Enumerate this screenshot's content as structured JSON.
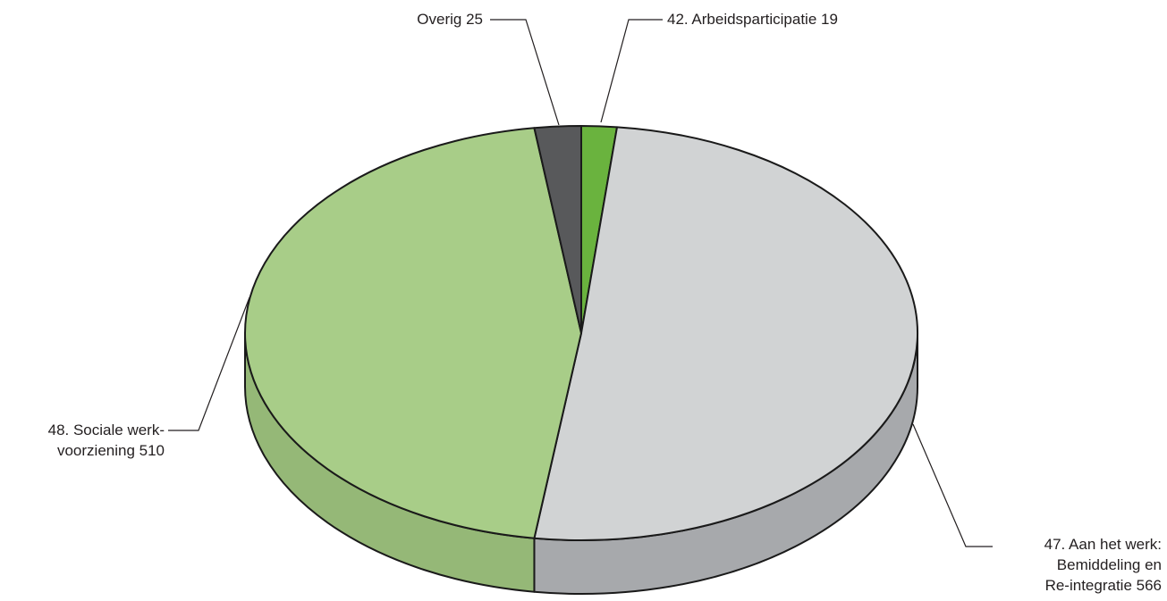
{
  "chart_data": {
    "type": "pie",
    "style": "3d",
    "series": [
      {
        "name": "42. Arbeidsparticipatie",
        "value": 19,
        "color": "#6ab33e",
        "side_color": "#5a9a33"
      },
      {
        "name": "47. Aan het werk: Bemiddeling en Re-integratie",
        "value": 566,
        "color": "#d1d3d4",
        "side_color": "#a7a9ac"
      },
      {
        "name": "48. Sociale werkvoorziening",
        "value": 510,
        "color": "#a8cd88",
        "side_color": "#95b877"
      },
      {
        "name": "Overig",
        "value": 25,
        "color": "#58595b",
        "side_color": "#3f4042"
      }
    ],
    "labels": [
      {
        "lines": [
          "42. Arbeidsparticipatie 19"
        ]
      },
      {
        "lines": [
          "47. Aan het werk:",
          "Bemiddeling en",
          "Re-integratie 566"
        ]
      },
      {
        "lines": [
          "48. Sociale werk-",
          "voorziening 510"
        ]
      },
      {
        "lines": [
          "Overig 25"
        ]
      }
    ]
  }
}
